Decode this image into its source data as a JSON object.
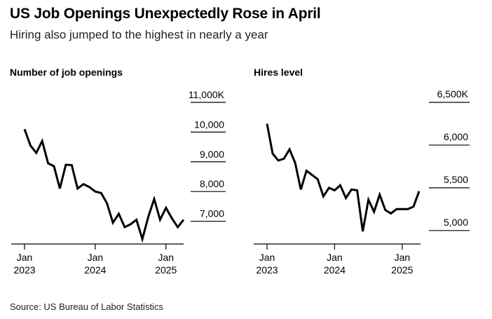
{
  "header": {
    "title": "US Job Openings Unexpectedly Rose in April",
    "subtitle": "Hiring also jumped to the highest in nearly a year"
  },
  "footer": {
    "source": "Source: US Bureau of Labor Statistics"
  },
  "chart_data": [
    {
      "type": "line",
      "title": "Number of job openings",
      "unit": "thousands",
      "x": [
        "2023-01",
        "2023-02",
        "2023-03",
        "2023-04",
        "2023-05",
        "2023-06",
        "2023-07",
        "2023-08",
        "2023-09",
        "2023-10",
        "2023-11",
        "2023-12",
        "2024-01",
        "2024-02",
        "2024-03",
        "2024-04",
        "2024-05",
        "2024-06",
        "2024-07",
        "2024-08",
        "2024-09",
        "2024-10",
        "2024-11",
        "2024-12",
        "2025-01",
        "2025-02",
        "2025-03",
        "2025-04"
      ],
      "series": [
        {
          "values": [
            10100,
            9550,
            9300,
            9700,
            8950,
            8850,
            8100,
            8900,
            8890,
            8100,
            8250,
            8150,
            8000,
            7950,
            7600,
            6950,
            7250,
            6800,
            6900,
            7050,
            6400,
            7150,
            7750,
            7050,
            7450,
            7100,
            6800,
            7050
          ]
        }
      ],
      "xticks": [
        {
          "x": "2023-01",
          "label": "Jan\n2023"
        },
        {
          "x": "2024-01",
          "label": "Jan\n2024"
        },
        {
          "x": "2025-01",
          "label": "Jan\n2025"
        }
      ],
      "yticks": [
        7000,
        8000,
        9000,
        10000,
        11000
      ],
      "ytick_labels": [
        "7,000",
        "8,000",
        "9,000",
        "10,000",
        "11,000K"
      ],
      "ylim": [
        6400,
        11000
      ],
      "color": "#000000"
    },
    {
      "type": "line",
      "title": "Hires level",
      "unit": "thousands",
      "x": [
        "2023-01",
        "2023-02",
        "2023-03",
        "2023-04",
        "2023-05",
        "2023-06",
        "2023-07",
        "2023-08",
        "2023-09",
        "2023-10",
        "2023-11",
        "2023-12",
        "2024-01",
        "2024-02",
        "2024-03",
        "2024-04",
        "2024-05",
        "2024-06",
        "2024-07",
        "2024-08",
        "2024-09",
        "2024-10",
        "2024-11",
        "2024-12",
        "2025-01",
        "2025-02",
        "2025-03",
        "2025-04"
      ],
      "series": [
        {
          "values": [
            6250,
            5900,
            5820,
            5840,
            5950,
            5790,
            5480,
            5700,
            5650,
            5600,
            5400,
            5500,
            5470,
            5530,
            5380,
            5480,
            5470,
            4990,
            5360,
            5220,
            5420,
            5240,
            5200,
            5250,
            5250,
            5250,
            5280,
            5460
          ]
        }
      ],
      "xticks": [
        {
          "x": "2023-01",
          "label": "Jan\n2023"
        },
        {
          "x": "2024-01",
          "label": "Jan\n2024"
        },
        {
          "x": "2025-01",
          "label": "Jan\n2025"
        }
      ],
      "yticks": [
        5000,
        5500,
        6000,
        6500
      ],
      "ytick_labels": [
        "5,000",
        "5,500",
        "6,000",
        "6,500K"
      ],
      "ylim": [
        4900,
        6500
      ],
      "color": "#000000"
    }
  ]
}
